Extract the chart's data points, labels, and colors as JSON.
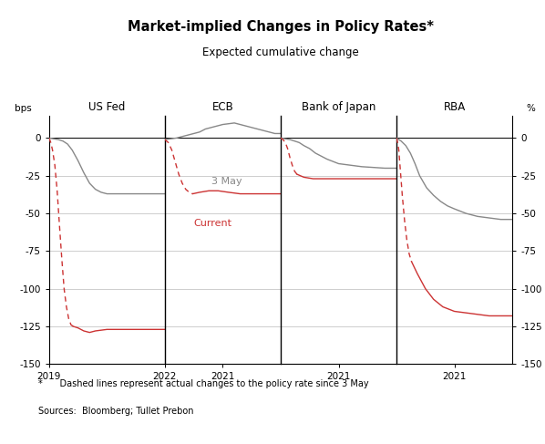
{
  "title": "Market-implied Changes in Policy Rates*",
  "subtitle": "Expected cumulative change",
  "ylabel_left": "bps",
  "ylabel_right": "%",
  "ylim": [
    -150,
    15
  ],
  "yticks": [
    -150,
    -125,
    -100,
    -75,
    -50,
    -25,
    0
  ],
  "footnote": "*      Dashed lines represent actual changes to the policy rate since 3 May",
  "sources": "Sources:  Bloomberg; Tullet Prebon",
  "panels": [
    "US Fed",
    "ECB",
    "Bank of Japan",
    "RBA"
  ],
  "gray_color": "#888888",
  "red_color": "#cc3333",
  "grid_color": "#bbbbbb",
  "usfed_gray_x": [
    0,
    0.04,
    0.08,
    0.12,
    0.16,
    0.2,
    0.25,
    0.3,
    0.35,
    0.4,
    0.45,
    0.5,
    0.6,
    0.7,
    0.8,
    0.9,
    1.0
  ],
  "usfed_gray_y": [
    0,
    -0.5,
    -1,
    -2,
    -4,
    -8,
    -15,
    -23,
    -30,
    -34,
    -36,
    -37,
    -37,
    -37,
    -37,
    -37,
    -37
  ],
  "usfed_red_dashed_x": [
    0,
    0.015,
    0.03,
    0.05,
    0.07,
    0.09,
    0.11,
    0.13,
    0.15,
    0.17,
    0.19,
    0.21
  ],
  "usfed_red_dashed_y": [
    0,
    -3,
    -8,
    -18,
    -35,
    -58,
    -80,
    -100,
    -112,
    -120,
    -124,
    -125
  ],
  "usfed_red_x": [
    0.21,
    0.25,
    0.3,
    0.35,
    0.4,
    0.5,
    0.6,
    0.7,
    0.8,
    0.9,
    1.0
  ],
  "usfed_red_y": [
    -125,
    -126,
    -128,
    -129,
    -128,
    -127,
    -127,
    -127,
    -127,
    -127,
    -127
  ],
  "ecb_gray_x": [
    0,
    0.05,
    0.1,
    0.15,
    0.2,
    0.25,
    0.3,
    0.35,
    0.4,
    0.45,
    0.5,
    0.55,
    0.6,
    0.65,
    0.7,
    0.75,
    0.8,
    0.85,
    0.9,
    0.95,
    1.0
  ],
  "ecb_gray_y": [
    -1,
    -0.5,
    0,
    1,
    2,
    3,
    4,
    6,
    7,
    8,
    9,
    9.5,
    10,
    9,
    8,
    7,
    6,
    5,
    4,
    3,
    3
  ],
  "ecb_red_dashed_x": [
    0,
    0.03,
    0.06,
    0.09,
    0.12,
    0.15,
    0.18,
    0.21,
    0.24
  ],
  "ecb_red_dashed_y": [
    -1,
    -3,
    -8,
    -16,
    -24,
    -30,
    -34,
    -36,
    -37
  ],
  "ecb_red_x": [
    0.24,
    0.3,
    0.38,
    0.46,
    0.55,
    0.65,
    0.75,
    0.85,
    0.95,
    1.0
  ],
  "ecb_red_y": [
    -37,
    -36,
    -35,
    -35,
    -36,
    -37,
    -37,
    -37,
    -37,
    -37
  ],
  "boj_gray_x": [
    0,
    0.04,
    0.08,
    0.12,
    0.16,
    0.2,
    0.25,
    0.3,
    0.35,
    0.4,
    0.5,
    0.6,
    0.7,
    0.8,
    0.9,
    1.0
  ],
  "boj_gray_y": [
    0,
    -0.5,
    -1,
    -2,
    -3,
    -5,
    -7,
    -10,
    -12,
    -14,
    -17,
    -18,
    -19,
    -19.5,
    -20,
    -20
  ],
  "boj_red_dashed_x": [
    0,
    0.02,
    0.04,
    0.06,
    0.08,
    0.1,
    0.12,
    0.14
  ],
  "boj_red_dashed_y": [
    0,
    -1,
    -3,
    -7,
    -13,
    -18,
    -22,
    -24
  ],
  "boj_red_x": [
    0.14,
    0.2,
    0.28,
    0.36,
    0.44,
    0.52,
    0.6,
    0.7,
    0.8,
    0.9,
    1.0
  ],
  "boj_red_y": [
    -24,
    -26,
    -27,
    -27,
    -27,
    -27,
    -27,
    -27,
    -27,
    -27,
    -27
  ],
  "rba_gray_x": [
    0,
    0.04,
    0.08,
    0.12,
    0.16,
    0.2,
    0.26,
    0.32,
    0.38,
    0.44,
    0.5,
    0.6,
    0.7,
    0.8,
    0.9,
    1.0
  ],
  "rba_gray_y": [
    0,
    -2,
    -5,
    -10,
    -17,
    -25,
    -33,
    -38,
    -42,
    -45,
    -47,
    -50,
    -52,
    -53,
    -54,
    -54
  ],
  "rba_red_dashed_x": [
    0,
    0.01,
    0.02,
    0.03,
    0.05,
    0.07,
    0.09,
    0.11,
    0.13
  ],
  "rba_red_dashed_y": [
    0,
    -3,
    -8,
    -18,
    -38,
    -55,
    -68,
    -77,
    -82
  ],
  "rba_red_x": [
    0.13,
    0.18,
    0.25,
    0.32,
    0.4,
    0.5,
    0.6,
    0.7,
    0.8,
    0.9,
    1.0
  ],
  "rba_red_y": [
    -82,
    -90,
    -100,
    -107,
    -112,
    -115,
    -116,
    -117,
    -118,
    -118,
    -118
  ]
}
